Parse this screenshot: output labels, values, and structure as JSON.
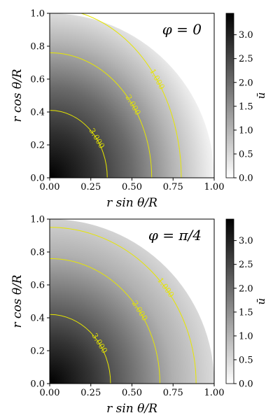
{
  "chart_data": [
    {
      "type": "heatmap",
      "annotation": "φ = 0",
      "xlabel": "r sin θ/R",
      "ylabel": "r cos θ/R",
      "xlim": [
        0,
        1
      ],
      "ylim": [
        0,
        1
      ],
      "x_ticks": [
        "0.00",
        "0.25",
        "0.50",
        "0.75",
        "1.00"
      ],
      "y_ticks": [
        "0.0",
        "0.2",
        "0.4",
        "0.6",
        "0.8",
        "1.0"
      ],
      "colorbar": {
        "label": "ū",
        "range": [
          0,
          3.45
        ],
        "ticks": [
          "0.0",
          "0.5",
          "1.0",
          "1.5",
          "2.0",
          "2.5",
          "3.0"
        ],
        "colormap": "white-to-black"
      },
      "contours": [
        {
          "level": 1.0,
          "label": "1.000",
          "x_intercept": 0.8,
          "y_intercept": 1.03
        },
        {
          "level": 2.0,
          "label": "2.000",
          "x_intercept": 0.62,
          "y_intercept": 0.76
        },
        {
          "level": 3.0,
          "label": "3.000",
          "x_intercept": 0.35,
          "y_intercept": 0.41
        }
      ],
      "contour_color": "#e6e600"
    },
    {
      "type": "heatmap",
      "annotation": "φ = π/4",
      "xlabel": "r sin θ/R",
      "ylabel": "r cos θ/R",
      "xlim": [
        0,
        1
      ],
      "ylim": [
        0,
        1
      ],
      "x_ticks": [
        "0.00",
        "0.25",
        "0.50",
        "0.75",
        "1.00"
      ],
      "y_ticks": [
        "0.0",
        "0.2",
        "0.4",
        "0.6",
        "0.8",
        "1.0"
      ],
      "colorbar": {
        "label": "ū",
        "range": [
          0,
          3.45
        ],
        "ticks": [
          "0.0",
          "0.5",
          "1.0",
          "1.5",
          "2.0",
          "2.5",
          "3.0"
        ],
        "colormap": "white-to-black"
      },
      "contours": [
        {
          "level": 1.0,
          "label": "1.000",
          "x_intercept": 0.89,
          "y_intercept": 0.95
        },
        {
          "level": 2.0,
          "label": "2.000",
          "x_intercept": 0.67,
          "y_intercept": 0.76
        },
        {
          "level": 3.0,
          "label": "3.000",
          "x_intercept": 0.37,
          "y_intercept": 0.42
        }
      ],
      "contour_color": "#e6e600"
    }
  ]
}
